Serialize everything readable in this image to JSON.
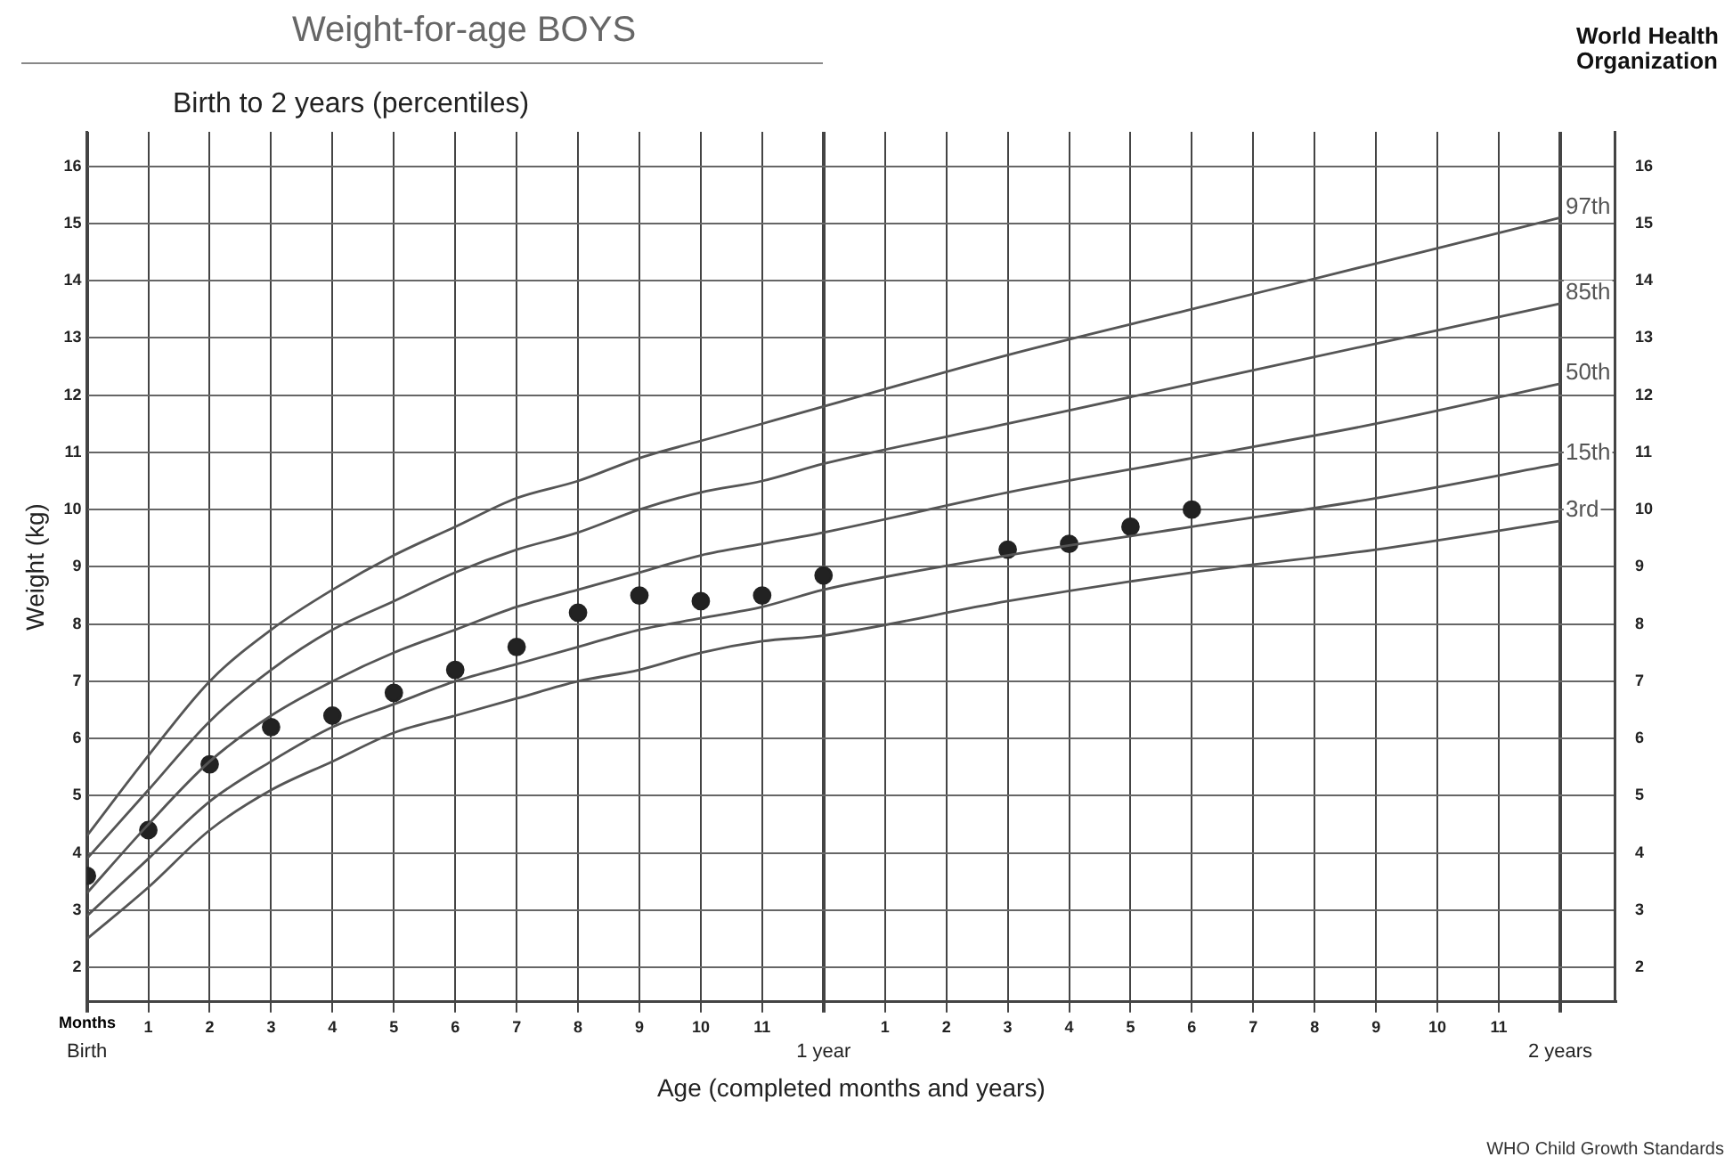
{
  "chart_data": {
    "type": "line",
    "title": "Weight-for-age BOYS",
    "subtitle": "Birth to 2 years (percentiles)",
    "xlabel": "Age (completed months and years)",
    "ylabel": "Weight (kg)",
    "annotations": [
      "Months",
      "WHO Child Growth Standards",
      "World Health Organization",
      "Birth",
      "1 year",
      "2 years"
    ],
    "series": [
      {
        "name": "97th",
        "type": "line",
        "color": "#555555",
        "x": [
          0,
          1,
          2,
          3,
          4,
          5,
          6,
          7,
          8,
          9,
          10,
          11,
          12,
          15,
          18,
          21,
          24
        ],
        "values": [
          4.3,
          5.7,
          7.0,
          7.9,
          8.6,
          9.2,
          9.7,
          10.2,
          10.5,
          10.9,
          11.2,
          11.5,
          11.8,
          12.7,
          13.5,
          14.3,
          15.1
        ]
      },
      {
        "name": "85th",
        "type": "line",
        "color": "#555555",
        "x": [
          0,
          1,
          2,
          3,
          4,
          5,
          6,
          7,
          8,
          9,
          10,
          11,
          12,
          15,
          18,
          21,
          24
        ],
        "values": [
          3.9,
          5.1,
          6.3,
          7.2,
          7.9,
          8.4,
          8.9,
          9.3,
          9.6,
          10.0,
          10.3,
          10.5,
          10.8,
          11.5,
          12.2,
          12.9,
          13.6
        ]
      },
      {
        "name": "50th",
        "type": "line",
        "color": "#555555",
        "x": [
          0,
          1,
          2,
          3,
          4,
          5,
          6,
          7,
          8,
          9,
          10,
          11,
          12,
          15,
          18,
          21,
          24
        ],
        "values": [
          3.3,
          4.5,
          5.6,
          6.4,
          7.0,
          7.5,
          7.9,
          8.3,
          8.6,
          8.9,
          9.2,
          9.4,
          9.6,
          10.3,
          10.9,
          11.5,
          12.2
        ]
      },
      {
        "name": "15th",
        "type": "line",
        "color": "#555555",
        "x": [
          0,
          1,
          2,
          3,
          4,
          5,
          6,
          7,
          8,
          9,
          10,
          11,
          12,
          15,
          18,
          21,
          24
        ],
        "values": [
          2.9,
          3.9,
          4.9,
          5.6,
          6.2,
          6.6,
          7.0,
          7.3,
          7.6,
          7.9,
          8.1,
          8.3,
          8.6,
          9.2,
          9.7,
          10.2,
          10.8
        ]
      },
      {
        "name": "3rd",
        "type": "line",
        "color": "#555555",
        "x": [
          0,
          1,
          2,
          3,
          4,
          5,
          6,
          7,
          8,
          9,
          10,
          11,
          12,
          15,
          18,
          21,
          24
        ],
        "values": [
          2.5,
          3.4,
          4.4,
          5.1,
          5.6,
          6.1,
          6.4,
          6.7,
          7.0,
          7.2,
          7.5,
          7.7,
          7.8,
          8.4,
          8.9,
          9.3,
          9.8
        ]
      },
      {
        "type": "scatter",
        "color": "#222222",
        "marker": "circle",
        "x": [
          0,
          1,
          2,
          3,
          4,
          5,
          6,
          7,
          8,
          9,
          10,
          11,
          12,
          15,
          16,
          17,
          18
        ],
        "values": [
          3.6,
          4.4,
          5.55,
          6.2,
          6.4,
          6.8,
          7.2,
          7.6,
          8.2,
          8.5,
          8.4,
          8.5,
          8.85,
          9.3,
          9.4,
          9.7,
          10.0
        ]
      }
    ],
    "xlim": [
      0,
      24.9
    ],
    "xticks": [
      {
        "value": 0,
        "label": null
      },
      1,
      2,
      3,
      4,
      5,
      6,
      7,
      8,
      9,
      10,
      11,
      {
        "value": 12,
        "label": null
      },
      {
        "value": 13,
        "label": null
      },
      {
        "value": 14,
        "label": null
      },
      {
        "value": 15,
        "label": null
      },
      {
        "value": 16,
        "label": null
      },
      {
        "value": 17,
        "label": null
      },
      {
        "value": 18,
        "label": null
      },
      {
        "value": 19,
        "label": null
      },
      {
        "value": 20,
        "label": null
      },
      {
        "value": 21,
        "label": null
      },
      {
        "value": 22,
        "label": null
      },
      {
        "value": 23,
        "label": null
      },
      {
        "value": 24,
        "label": null
      }
    ],
    "x2lim": [
      -12,
      12.9
    ],
    "x2ticks": [
      1,
      2,
      3,
      4,
      5,
      6,
      7,
      8,
      9,
      10,
      11
    ],
    "ylim": [
      1.4,
      16.6
    ],
    "yticks": [
      2,
      3,
      4,
      5,
      6,
      7,
      8,
      9,
      10,
      11,
      12,
      13,
      14,
      15,
      16
    ],
    "y2lim": [
      1.4,
      16.6
    ],
    "y2ticks": [
      2,
      3,
      4,
      5,
      6,
      7,
      8,
      9,
      10,
      11,
      12,
      13,
      14,
      15,
      16
    ],
    "grid": true,
    "legend": false,
    "marker": "none",
    "line_style": "solid"
  }
}
